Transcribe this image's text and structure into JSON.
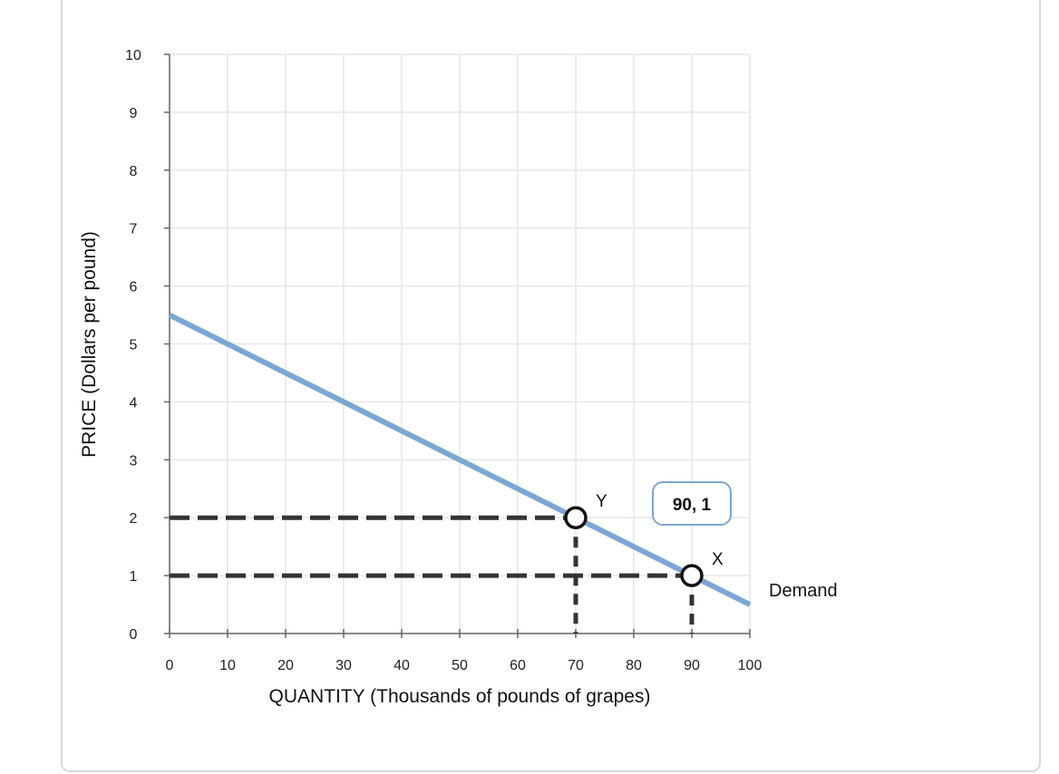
{
  "chart_data": {
    "type": "line",
    "xlabel": "QUANTITY (Thousands of pounds of grapes)",
    "ylabel": "PRICE (Dollars per pound)",
    "xlim": [
      0,
      100
    ],
    "ylim": [
      0,
      10
    ],
    "xticks": [
      "0",
      "10",
      "20",
      "30",
      "40",
      "50",
      "60",
      "70",
      "80",
      "90",
      "100"
    ],
    "yticks": [
      "0",
      "1",
      "2",
      "3",
      "4",
      "5",
      "6",
      "7",
      "8",
      "9",
      "10"
    ],
    "grid": true,
    "series": [
      {
        "name": "Demand",
        "color": "#7ba7d4",
        "x": [
          0,
          100
        ],
        "y": [
          5.5,
          0.5
        ]
      }
    ],
    "points": [
      {
        "label": "Y",
        "x": 70,
        "y": 2
      },
      {
        "label": "X",
        "x": 90,
        "y": 1
      }
    ],
    "tooltip": {
      "text": "90, 1",
      "anchor_point": "X"
    },
    "guide_line_color": "#333333"
  }
}
